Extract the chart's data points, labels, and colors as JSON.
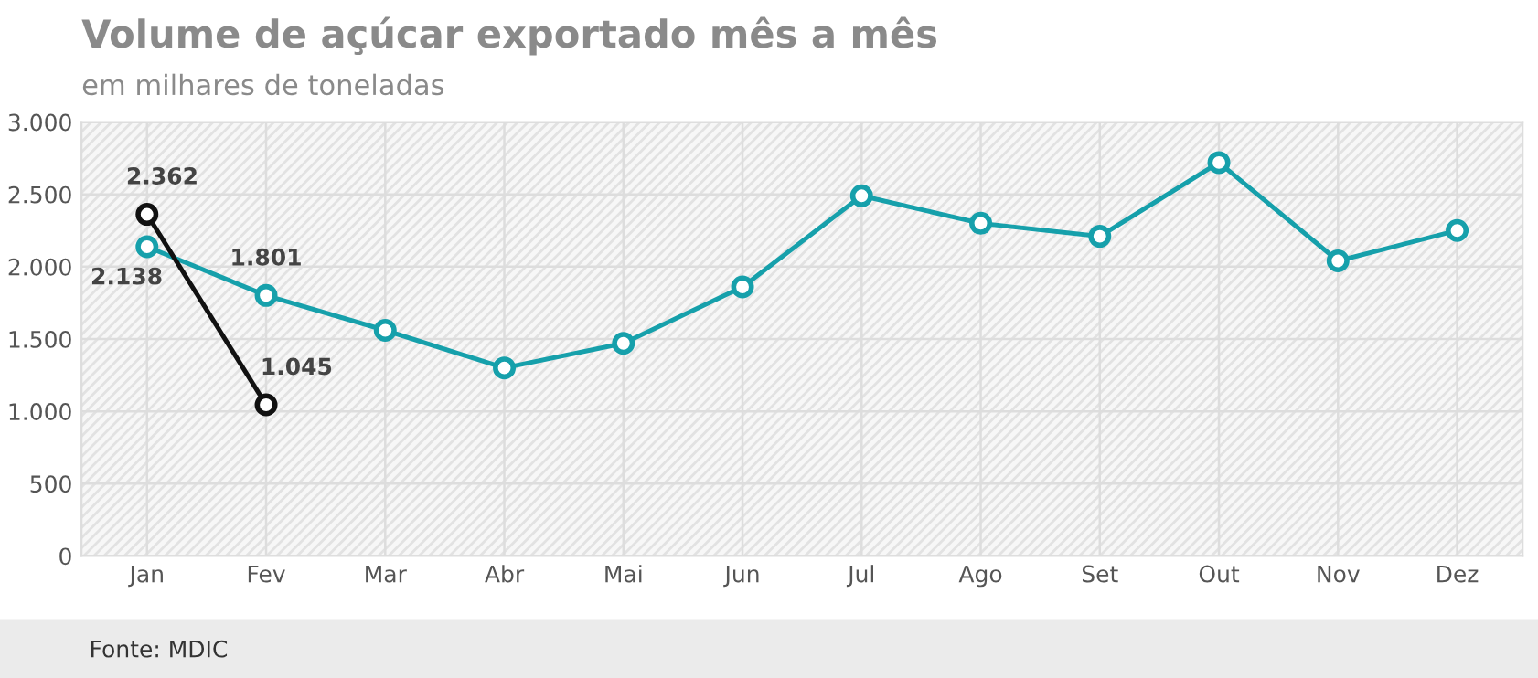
{
  "chart_data": {
    "type": "line",
    "title": "Volume de açúcar exportado mês a mês",
    "subtitle": "em milhares de toneladas",
    "categories": [
      "Jan",
      "Fev",
      "Mar",
      "Abr",
      "Mai",
      "Jun",
      "Jul",
      "Ago",
      "Set",
      "Out",
      "Nov",
      "Dez"
    ],
    "series": [
      {
        "color": "#16a0ab",
        "values": [
          2138,
          1801,
          1560,
          1300,
          1470,
          1860,
          2490,
          2300,
          2210,
          2720,
          2040,
          2250
        ],
        "value_labels": [
          "2.138",
          "1.801",
          null,
          null,
          null,
          null,
          null,
          null,
          null,
          null,
          null,
          null
        ]
      },
      {
        "color": "#111111",
        "values": [
          2362,
          1045,
          null,
          null,
          null,
          null,
          null,
          null,
          null,
          null,
          null,
          null
        ],
        "value_labels": [
          "2.362",
          "1.045",
          null,
          null,
          null,
          null,
          null,
          null,
          null,
          null,
          null,
          null
        ]
      }
    ],
    "ylim": [
      0,
      3000
    ],
    "yticks": [
      0,
      500,
      {
        "value": 1000,
        "label": "1.000"
      },
      {
        "value": 1500,
        "label": "1.500"
      },
      {
        "value": 2000,
        "label": "2.000"
      },
      {
        "value": 2500,
        "label": "2.500"
      },
      {
        "value": 3000,
        "label": "3.000"
      }
    ],
    "grid": true,
    "marker": "circle",
    "line_style": "solid",
    "annotations": [
      "Fonte: MDIC"
    ]
  }
}
